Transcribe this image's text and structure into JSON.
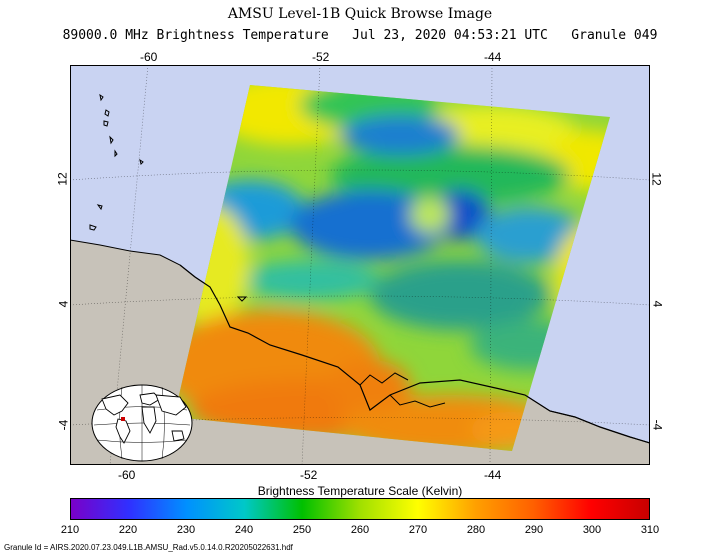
{
  "header": {
    "title": "AMSU Level-1B Quick Browse Image",
    "subtitle": "89000.0 MHz Brightness Temperature   Jul 23, 2020 04:53:21 UTC   Granule 049"
  },
  "map": {
    "lon_ticks_top": [
      "-60",
      "-52",
      "-44"
    ],
    "lon_ticks_bottom": [
      "-60",
      "-52",
      "-44"
    ],
    "lat_ticks_left": [
      "12",
      "4",
      "-4"
    ],
    "lat_ticks_right": [
      "12",
      "4",
      "-4"
    ],
    "colors": {
      "ocean": "#c9d3f2",
      "land": "#c7c2b9",
      "frame": "#000000",
      "inset_land": "#ffffff",
      "inset_ocean": "#ffffff",
      "inset_marker": "#cc0000"
    }
  },
  "colorbar": {
    "label": "Brightness Temperature Scale (Kelvin)",
    "ticks": [
      "210",
      "220",
      "230",
      "240",
      "250",
      "260",
      "270",
      "280",
      "290",
      "300",
      "310"
    ],
    "colors": [
      "#7a00c8",
      "#3030ff",
      "#0090ff",
      "#00c8c8",
      "#00c000",
      "#a0e000",
      "#ffff00",
      "#ffa000",
      "#ff6000",
      "#ff0000",
      "#c80000"
    ]
  },
  "footer": {
    "granule": "Granule Id = AIRS.2020.07.23.049.L1B.AMSU_Rad.v5.0.14.0.R20205022631.hdf"
  }
}
